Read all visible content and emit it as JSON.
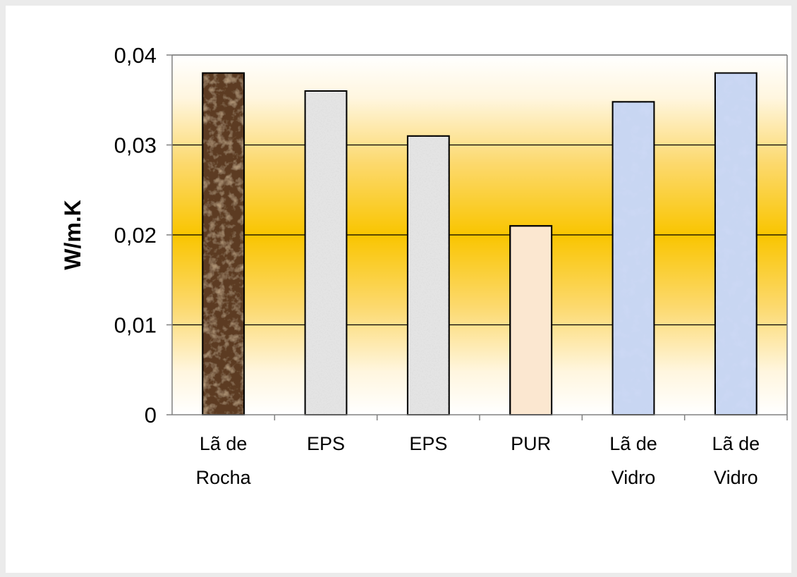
{
  "chart_data": {
    "type": "bar",
    "categories": [
      [
        "Lã de",
        "Rocha"
      ],
      [
        "EPS"
      ],
      [
        "EPS"
      ],
      [
        "PUR"
      ],
      [
        "Lã de",
        "Vidro"
      ],
      [
        "Lã de",
        "Vidro"
      ]
    ],
    "values": [
      0.038,
      0.036,
      0.031,
      0.021,
      0.0348,
      0.038
    ],
    "bar_styles": [
      "marble-brown",
      "granite-gray",
      "granite-gray",
      "solid-cream",
      "marble-blue",
      "marble-blue"
    ],
    "ylabel": "W/m.K",
    "xlabel": "",
    "ylim": [
      0,
      0.04
    ],
    "yticks": [
      0,
      0.01,
      0.02,
      0.03,
      0.04
    ],
    "ytick_labels": [
      "0",
      "0,01",
      "0,02",
      "0,03",
      "0,04"
    ],
    "grid": true,
    "legend": "none",
    "colors": {
      "plot_background_center": "#f9c500",
      "plot_background_edge": "#ffffff",
      "gridline": "#000000",
      "axis": "#808080",
      "bar_outline": "#000000",
      "rocha": "#5b3b22",
      "eps": "#e4e4e4",
      "pur": "#fbe7d0",
      "vidro": "#c8d6f2"
    }
  }
}
